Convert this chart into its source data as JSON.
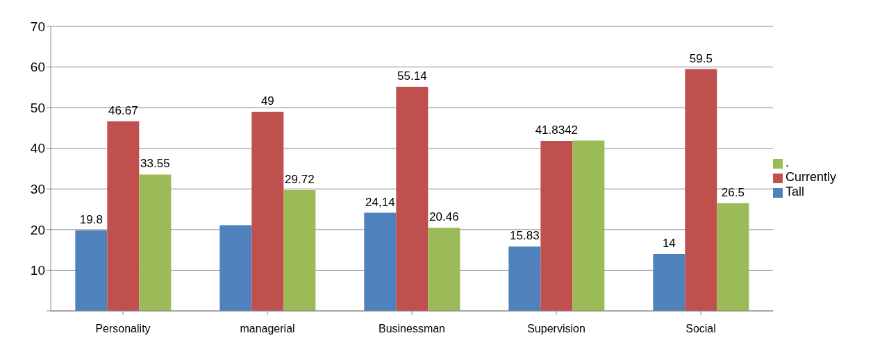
{
  "chart_data": {
    "type": "bar",
    "categories": [
      "Personality",
      "managerial",
      "Businessman",
      "Supervision",
      "Social"
    ],
    "series": [
      {
        "name": "Tall",
        "color": "#4f81bd",
        "values": [
          19.8,
          21.1,
          24.14,
          15.83,
          14
        ],
        "value_labels": [
          "19.8",
          null,
          "24,14",
          "15.83",
          "14"
        ]
      },
      {
        "name": "Currently",
        "color": "#c0504d",
        "values": [
          46.67,
          49,
          55.14,
          41.8342,
          59.5
        ],
        "value_labels": [
          "46.67",
          "49",
          "55.14",
          "41.8342",
          "59.5"
        ]
      },
      {
        "name": ".",
        "color": "#9bbb59",
        "values": [
          33.55,
          29.72,
          20.46,
          41.9,
          26.5
        ],
        "value_labels": [
          "33.55",
          "29.72",
          "20.46",
          null,
          "26.5"
        ]
      }
    ],
    "ylim": [
      0,
      70
    ],
    "yticks": [
      {
        "value": 0,
        "label": null
      },
      10,
      20,
      30,
      40,
      50,
      60,
      70
    ],
    "grid": "y",
    "legend": "right"
  }
}
